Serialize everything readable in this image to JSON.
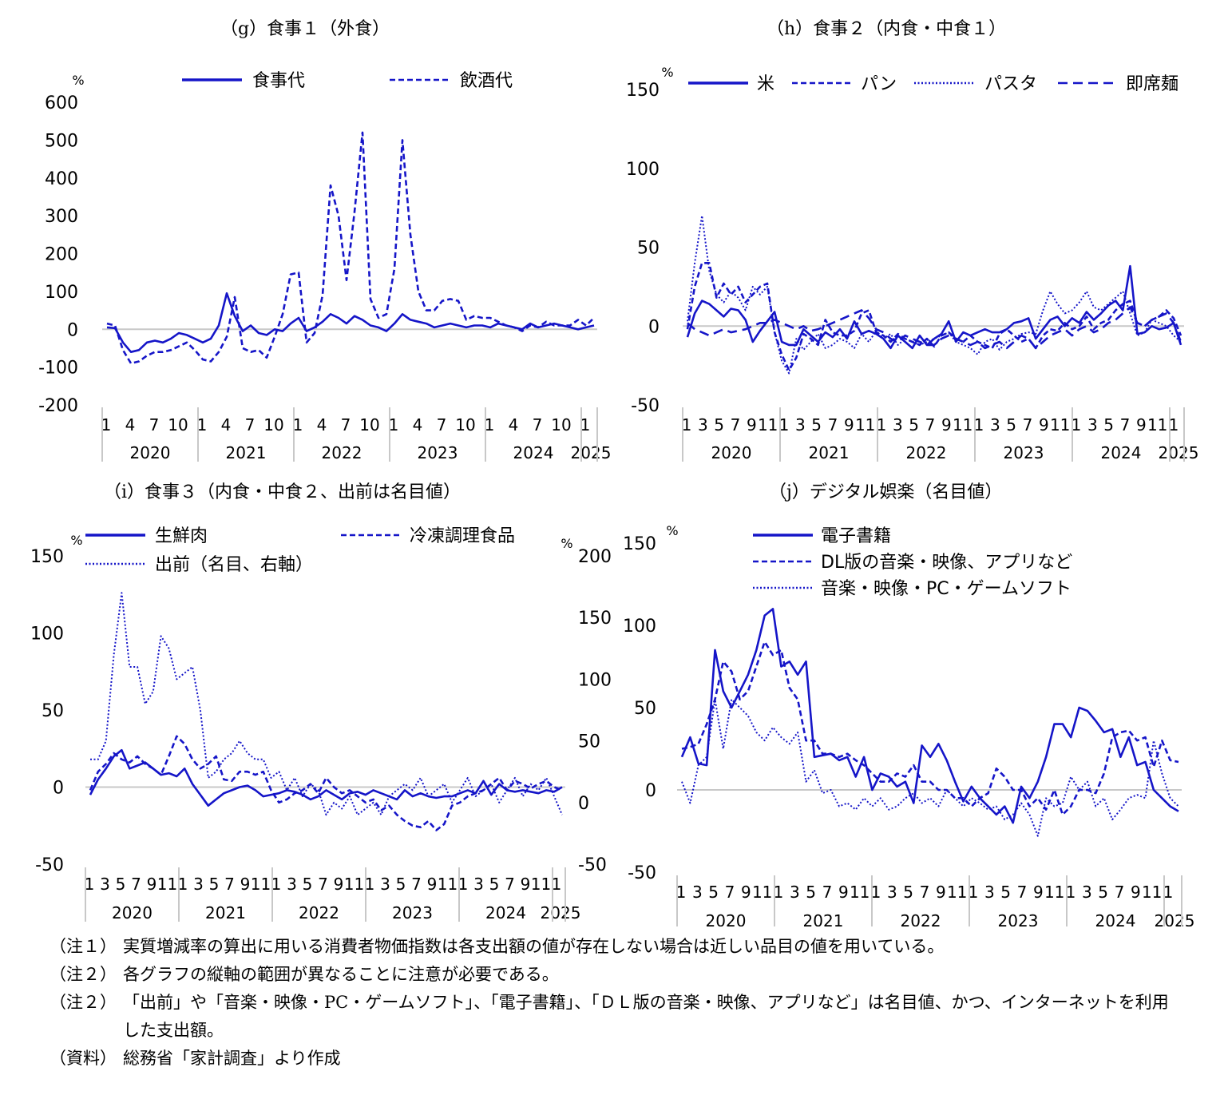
{
  "chart_data": [
    {
      "type": "line",
      "title": "（g）食事１（外食）",
      "unit": "%",
      "ylim": [
        -200,
        600
      ],
      "yticks": [
        -200,
        -100,
        0,
        100,
        200,
        300,
        400,
        500,
        600
      ],
      "month_labels": [
        "1",
        "4",
        "7",
        "10",
        "1",
        "4",
        "7",
        "10",
        "1",
        "4",
        "7",
        "10",
        "1",
        "4",
        "7",
        "10",
        "1",
        "4",
        "7",
        "10",
        "1"
      ],
      "year_labels": [
        "2020",
        "2021",
        "2022",
        "2023",
        "2024",
        "2025"
      ],
      "legend": "top",
      "series": [
        {
          "name": "食事代",
          "style": "solid",
          "color": "#1515c8",
          "values": [
            5,
            3,
            -35,
            -60,
            -55,
            -35,
            -30,
            -35,
            -25,
            -10,
            -15,
            -25,
            -35,
            -25,
            10,
            95,
            35,
            -5,
            10,
            -10,
            -15,
            0,
            -5,
            15,
            30,
            -5,
            5,
            20,
            40,
            30,
            15,
            35,
            25,
            10,
            5,
            -5,
            15,
            40,
            25,
            20,
            15,
            5,
            10,
            15,
            10,
            5,
            10,
            10,
            5,
            15,
            10,
            5,
            0,
            15,
            5,
            10,
            15,
            10,
            5,
            0,
            5,
            10
          ]
        },
        {
          "name": "飲酒代",
          "style": "dashed",
          "color": "#1515c8",
          "values": [
            15,
            10,
            -55,
            -90,
            -85,
            -70,
            -60,
            -60,
            -55,
            -45,
            -35,
            -55,
            -80,
            -85,
            -60,
            -20,
            85,
            -50,
            -60,
            -55,
            -75,
            -20,
            40,
            145,
            150,
            -35,
            -10,
            90,
            380,
            300,
            130,
            310,
            520,
            80,
            30,
            40,
            160,
            500,
            250,
            100,
            50,
            50,
            75,
            80,
            75,
            25,
            35,
            30,
            30,
            20,
            10,
            5,
            -5,
            10,
            5,
            20,
            10,
            10,
            10,
            25,
            10,
            30
          ]
        }
      ]
    },
    {
      "type": "line",
      "title": "（h）食事２（内食・中食１）",
      "unit": "%",
      "ylim": [
        -50,
        150
      ],
      "yticks": [
        -50,
        0,
        50,
        100,
        150
      ],
      "month_labels": [
        "1",
        "3",
        "5",
        "7",
        "9",
        "11",
        "1",
        "3",
        "5",
        "7",
        "9",
        "11",
        "1",
        "3",
        "5",
        "7",
        "9",
        "11",
        "1",
        "3",
        "5",
        "7",
        "9",
        "11",
        "1",
        "3",
        "5",
        "7",
        "9",
        "11",
        "1"
      ],
      "year_labels": [
        "2020",
        "2021",
        "2022",
        "2023",
        "2024",
        "2025"
      ],
      "legend": "top",
      "series": [
        {
          "name": "米",
          "style": "solid",
          "color": "#1515c8",
          "values": [
            -7,
            8,
            16,
            14,
            10,
            6,
            11,
            10,
            4,
            -10,
            -3,
            3,
            9,
            -10,
            -12,
            -12,
            -2,
            -6,
            -10,
            -4,
            -7,
            -2,
            -8,
            3,
            -5,
            -3,
            -5,
            -8,
            -14,
            -6,
            -10,
            -14,
            -6,
            -12,
            -8,
            -5,
            3,
            -10,
            -4,
            -6,
            -4,
            -2,
            -4,
            -4,
            -2,
            2,
            3,
            5,
            -8,
            -2,
            4,
            6,
            0,
            5,
            2,
            9,
            4,
            8,
            13,
            16,
            10,
            38,
            -5,
            -4,
            0,
            -2,
            -1,
            2,
            -12
          ]
        },
        {
          "name": "パン",
          "style": "dashed",
          "color": "#1515c8",
          "values": [
            -2,
            25,
            40,
            40,
            18,
            27,
            20,
            25,
            15,
            20,
            25,
            27,
            -4,
            -18,
            -28,
            -20,
            -5,
            -8,
            -12,
            4,
            -4,
            -6,
            -6,
            -3,
            8,
            10,
            -4,
            -6,
            -10,
            -5,
            -8,
            -10,
            -12,
            -8,
            -13,
            -6,
            -4,
            -8,
            -10,
            -6,
            -10,
            -12,
            -14,
            -5,
            -2,
            -6,
            -10,
            -8,
            -14,
            -6,
            -2,
            -3,
            2,
            -2,
            0,
            6,
            -2,
            2,
            4,
            10,
            14,
            16,
            2,
            0,
            4,
            6,
            10,
            5,
            -6
          ]
        },
        {
          "name": "パスタ",
          "style": "dotted",
          "color": "#1515c8",
          "values": [
            3,
            40,
            70,
            35,
            20,
            15,
            22,
            18,
            10,
            25,
            20,
            25,
            -4,
            -22,
            -30,
            -8,
            -15,
            -10,
            -5,
            -14,
            -12,
            -8,
            -10,
            -14,
            -5,
            -10,
            -3,
            -8,
            -5,
            -12,
            -8,
            -10,
            -12,
            -10,
            -8,
            -6,
            -4,
            -10,
            -12,
            -14,
            -18,
            -10,
            -8,
            -15,
            -10,
            -8,
            -5,
            -4,
            -5,
            10,
            22,
            14,
            8,
            10,
            15,
            22,
            12,
            10,
            14,
            18,
            22,
            8,
            -6,
            -4,
            4,
            2,
            0,
            -6,
            -10
          ]
        },
        {
          "name": "即席麺",
          "style": "dashed2",
          "color": "#1515c8",
          "values": [
            2,
            -2,
            -4,
            -6,
            -4,
            -2,
            -4,
            -3,
            -2,
            0,
            2,
            2,
            4,
            2,
            0,
            -2,
            0,
            -3,
            -2,
            0,
            2,
            4,
            6,
            8,
            10,
            5,
            -2,
            -4,
            -8,
            -10,
            -6,
            -8,
            -10,
            -12,
            -12,
            -8,
            -6,
            -8,
            -10,
            -12,
            -10,
            -14,
            -12,
            -10,
            -14,
            -10,
            -6,
            -8,
            -14,
            -10,
            -6,
            -4,
            -2,
            -6,
            -2,
            0,
            -4,
            -2,
            2,
            4,
            8,
            12,
            2,
            0,
            4,
            6,
            8,
            2,
            -10
          ]
        }
      ]
    },
    {
      "type": "line",
      "title": "（i）食事３（内食・中食２、出前は名目値）",
      "unit": "%",
      "ylim": [
        -50,
        150
      ],
      "yticks": [
        -50,
        0,
        50,
        100,
        150
      ],
      "right_unit": "%",
      "right_ylim": [
        -50,
        200
      ],
      "right_yticks": [
        -50,
        0,
        50,
        100,
        150,
        200
      ],
      "month_labels": [
        "1",
        "3",
        "5",
        "7",
        "9",
        "11",
        "1",
        "3",
        "5",
        "7",
        "9",
        "11",
        "1",
        "3",
        "5",
        "7",
        "9",
        "11",
        "1",
        "3",
        "5",
        "7",
        "9",
        "11",
        "1",
        "3",
        "5",
        "7",
        "9",
        "11",
        "1"
      ],
      "year_labels": [
        "2020",
        "2021",
        "2022",
        "2023",
        "2024",
        "2025"
      ],
      "legend": "top",
      "series": [
        {
          "name": "生鮮肉",
          "style": "solid",
          "color": "#1515c8",
          "values": [
            -5,
            5,
            12,
            20,
            24,
            12,
            14,
            16,
            12,
            8,
            9,
            7,
            12,
            2,
            -5,
            -12,
            -8,
            -4,
            -2,
            0,
            1,
            -2,
            -6,
            -5,
            -4,
            -2,
            -3,
            -5,
            -8,
            -6,
            -2,
            -5,
            -8,
            -4,
            -3,
            -5,
            -2,
            -4,
            -6,
            -8,
            -2,
            -6,
            -4,
            -6,
            -7,
            -6,
            -6,
            -4,
            -2,
            -4,
            4,
            -5,
            2,
            -2,
            -3,
            -2,
            -3,
            -4,
            -2,
            -3,
            0
          ]
        },
        {
          "name": "冷凍調理食品",
          "style": "dashed",
          "color": "#1515c8",
          "values": [
            -2,
            10,
            15,
            22,
            18,
            16,
            20,
            15,
            12,
            8,
            20,
            33,
            28,
            18,
            12,
            15,
            20,
            5,
            4,
            10,
            10,
            8,
            10,
            -2,
            -10,
            -8,
            -4,
            -2,
            2,
            -4,
            6,
            0,
            -4,
            -2,
            -6,
            -10,
            -8,
            -15,
            -12,
            -18,
            -22,
            -25,
            -26,
            -22,
            -28,
            -24,
            -12,
            -10,
            -6,
            -4,
            -2,
            2,
            6,
            -2,
            4,
            2,
            -1,
            2,
            4,
            0,
            -2
          ]
        },
        {
          "name": "出前（名目、右軸）",
          "style": "dotted",
          "color": "#1515c8",
          "axis": "right",
          "values": [
            35,
            35,
            50,
            120,
            170,
            110,
            110,
            80,
            90,
            135,
            125,
            100,
            105,
            110,
            75,
            20,
            25,
            35,
            40,
            50,
            40,
            35,
            35,
            20,
            25,
            10,
            20,
            5,
            15,
            10,
            -10,
            0,
            -5,
            5,
            -10,
            -5,
            0,
            -10,
            5,
            10,
            15,
            10,
            20,
            5,
            10,
            15,
            0,
            10,
            20,
            5,
            10,
            15,
            0,
            10,
            20,
            5,
            15,
            10,
            20,
            5,
            -10
          ]
        }
      ]
    },
    {
      "type": "line",
      "title": "（j）デジタル娯楽（名目値）",
      "unit": "%",
      "ylim": [
        -50,
        150
      ],
      "yticks": [
        -50,
        0,
        50,
        100,
        150
      ],
      "month_labels": [
        "1",
        "3",
        "5",
        "7",
        "9",
        "11",
        "1",
        "3",
        "5",
        "7",
        "9",
        "11",
        "1",
        "3",
        "5",
        "7",
        "9",
        "11",
        "1",
        "3",
        "5",
        "7",
        "9",
        "11",
        "1",
        "3",
        "5",
        "7",
        "9",
        "11",
        "1"
      ],
      "year_labels": [
        "2020",
        "2021",
        "2022",
        "2023",
        "2024",
        "2025"
      ],
      "legend": "top-left",
      "series": [
        {
          "name": "電子書籍",
          "style": "solid",
          "color": "#1515c8",
          "values": [
            20,
            32,
            16,
            15,
            85,
            60,
            50,
            60,
            70,
            85,
            106,
            110,
            75,
            78,
            70,
            78,
            20,
            21,
            22,
            18,
            20,
            8,
            20,
            0,
            10,
            8,
            2,
            5,
            -8,
            27,
            20,
            28,
            18,
            5,
            -7,
            2,
            -5,
            -10,
            -15,
            -10,
            -20,
            2,
            -5,
            5,
            20,
            40,
            40,
            32,
            50,
            48,
            42,
            35,
            37,
            20,
            32,
            15,
            17,
            0,
            -5,
            -10,
            -13
          ]
        },
        {
          "name": "DL版の音楽・映像、アプリなど",
          "style": "dashed",
          "color": "#1515c8",
          "values": [
            25,
            26,
            28,
            40,
            55,
            78,
            72,
            55,
            60,
            75,
            90,
            82,
            85,
            62,
            55,
            30,
            30,
            22,
            22,
            20,
            22,
            18,
            15,
            10,
            5,
            5,
            10,
            8,
            15,
            5,
            5,
            0,
            0,
            -5,
            -5,
            -10,
            -5,
            -2,
            13,
            8,
            0,
            0,
            -10,
            -5,
            -12,
            0,
            -15,
            -10,
            0,
            0,
            -2,
            10,
            32,
            35,
            36,
            30,
            32,
            14,
            30,
            18,
            17
          ]
        },
        {
          "name": "音楽・映像・PC・ゲームソフト",
          "style": "dotted",
          "color": "#1515c8",
          "values": [
            5,
            -8,
            15,
            20,
            55,
            25,
            55,
            50,
            45,
            35,
            30,
            38,
            32,
            28,
            35,
            5,
            12,
            -2,
            0,
            -10,
            -8,
            -12,
            -5,
            -10,
            -5,
            -12,
            -10,
            -5,
            -2,
            -8,
            -5,
            -10,
            0,
            -5,
            -10,
            -5,
            -8,
            -12,
            -10,
            -18,
            -15,
            -8,
            -15,
            -28,
            -5,
            -10,
            -8,
            8,
            0,
            5,
            -10,
            -5,
            -18,
            -12,
            -5,
            -3,
            -5,
            30,
            10,
            -5,
            -10
          ]
        }
      ]
    }
  ],
  "notes": [
    {
      "label": "（注１）",
      "text": "実質増減率の算出に用いる消費者物価指数は各支出額の値が存在しない場合は近しい品目の値を用いている。"
    },
    {
      "label": "（注２）",
      "text": "各グラフの縦軸の範囲が異なることに注意が必要である。"
    },
    {
      "label": "（注２）",
      "text": "「出前」や「音楽・映像・PC・ゲームソフト」、「電子書籍」、「ＤＬ版の音楽・映像、アプリなど」は名目値、かつ、インターネットを利用した支出額。"
    },
    {
      "label": "（資料）",
      "text": "総務省「家計調査」より作成"
    }
  ]
}
